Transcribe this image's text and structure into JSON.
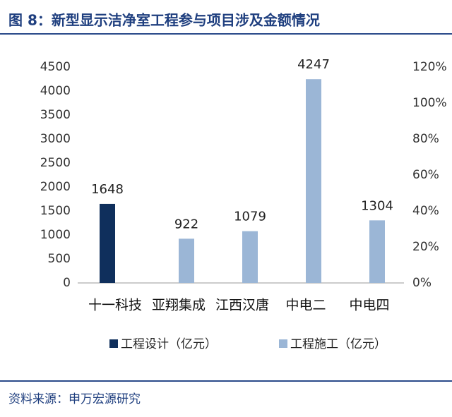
{
  "chart_data": {
    "type": "bar",
    "title": "图 8：新型显示洁净室工程参与项目涉及金额情况",
    "source": "资料来源：申万宏源研究",
    "categories": [
      "十一科技",
      "亚翔集成",
      "江西汉唐",
      "中电二",
      "中电四"
    ],
    "series": [
      {
        "name": "工程设计（亿元）",
        "color": "#0f2f5c",
        "values": [
          1648,
          null,
          null,
          null,
          null
        ]
      },
      {
        "name": "工程施工（亿元）",
        "color": "#9bb6d6",
        "values": [
          null,
          922,
          1079,
          4247,
          1304
        ]
      }
    ],
    "ylim": [
      0,
      4500
    ],
    "yticks": [
      0,
      500,
      1000,
      1500,
      2000,
      2500,
      3000,
      3500,
      4000,
      4500
    ],
    "y2lim": [
      0,
      120
    ],
    "y2ticks": [
      {
        "value": 0,
        "label": "0%"
      },
      {
        "value": 20,
        "label": "20%"
      },
      {
        "value": 40,
        "label": "40%"
      },
      {
        "value": 60,
        "label": "60%"
      },
      {
        "value": 80,
        "label": "80%"
      },
      {
        "value": 100,
        "label": "100%"
      },
      {
        "value": 120,
        "label": "120%"
      }
    ],
    "grid": false,
    "legend": "bottom"
  }
}
